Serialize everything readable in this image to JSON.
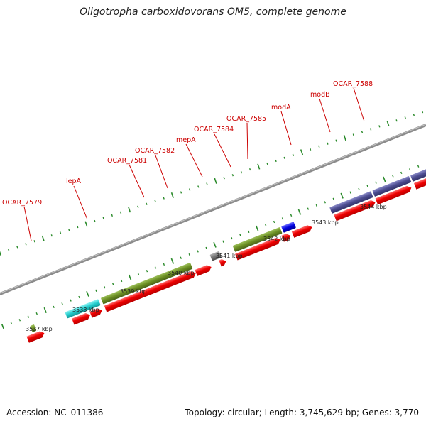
{
  "title": "Oligotropha carboxidovorans OM5, complete genome",
  "footer": {
    "accession": "Accession: NC_011386",
    "summary": "Topology: circular; Length: 3,745,629 bp; Genes: 3,770"
  },
  "colors": {
    "cds": "#ee0000",
    "cyan_feature": "#22cccc",
    "olive_feature": "#6b8e23",
    "gray_feature": "#777777",
    "blue_feature": "#0000dd",
    "purple_feature": "#4b4b8f",
    "backbone": "#8c8c8c",
    "tick": "#2a8a2a",
    "label": "#cc0000"
  },
  "gene_labels": [
    {
      "text": "OCAR_7579"
    },
    {
      "text": "lepA"
    },
    {
      "text": "OCAR_7581"
    },
    {
      "text": "OCAR_7582"
    },
    {
      "text": "mepA"
    },
    {
      "text": "OCAR_7584"
    },
    {
      "text": "OCAR_7585"
    },
    {
      "text": "modA"
    },
    {
      "text": "modB"
    },
    {
      "text": "OCAR_7588"
    }
  ],
  "kbp_labels": [
    "3537 kbp",
    "3538 kbp",
    "3539 kbp",
    "3540 kbp",
    "3541 kbp",
    "3542 kbp",
    "3543 kbp",
    "3544 kbp"
  ]
}
